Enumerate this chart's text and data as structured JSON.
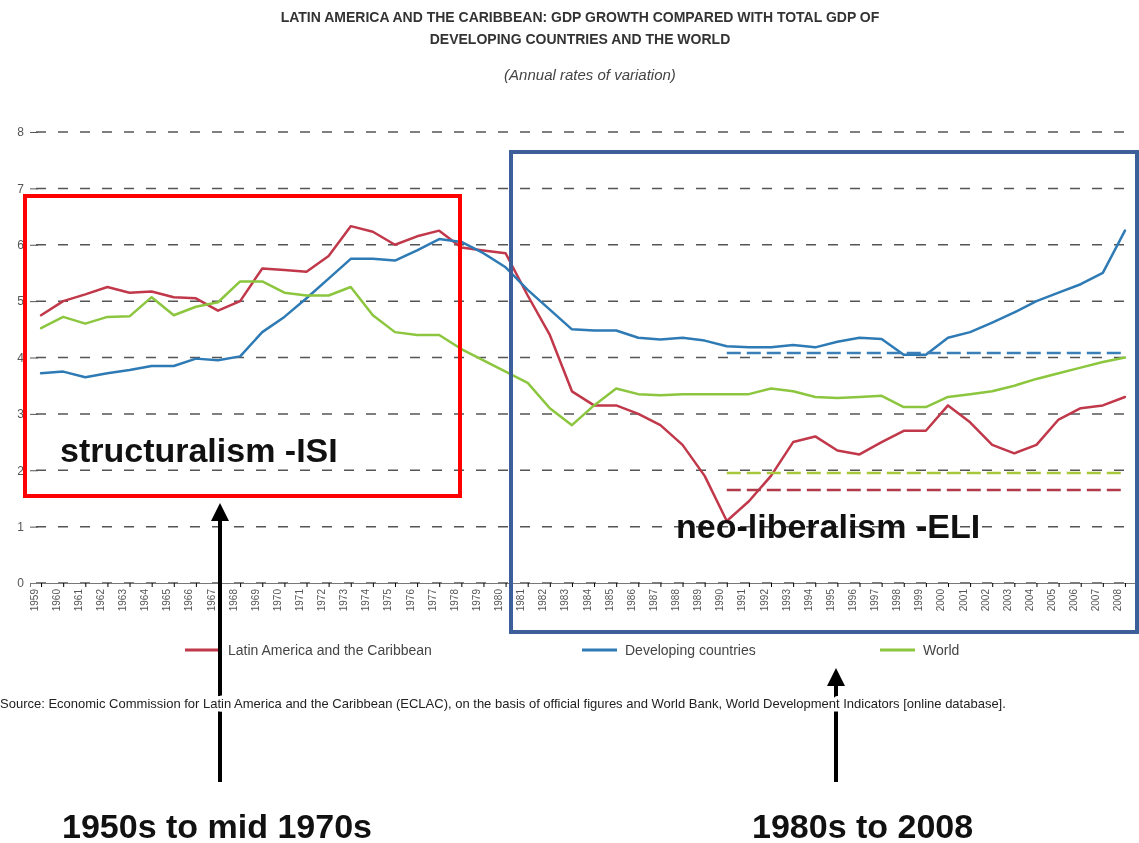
{
  "chart_data": {
    "type": "line",
    "title": "LATIN AMERICA AND THE CARIBBEAN: GDP GROWTH COMPARED WITH TOTAL GDP OF DEVELOPING COUNTRIES AND THE WORLD",
    "subtitle": "(Annual rates of variation)",
    "categories": [
      "1959",
      "1960",
      "1961",
      "1962",
      "1963",
      "1964",
      "1965",
      "1966",
      "1967",
      "1968",
      "1969",
      "1970",
      "1971",
      "1972",
      "1973",
      "1974",
      "1975",
      "1976",
      "1977",
      "1978",
      "1979",
      "1980",
      "1981",
      "1982",
      "1983",
      "1984",
      "1985",
      "1986",
      "1987",
      "1988",
      "1989",
      "1990",
      "1991",
      "1992",
      "1993",
      "1994",
      "1995",
      "1996",
      "1997",
      "1998",
      "1999",
      "2000",
      "2001",
      "2002",
      "2003",
      "2004",
      "2005",
      "2006",
      "2007",
      "2008"
    ],
    "series": [
      {
        "name": "Latin America and the Caribbean",
        "color": "#c0384a",
        "values": [
          4.75,
          5.0,
          5.12,
          5.25,
          5.15,
          5.17,
          5.07,
          5.05,
          4.83,
          5.0,
          5.58,
          5.55,
          5.52,
          5.8,
          6.33,
          6.23,
          6.0,
          6.15,
          6.25,
          5.95,
          5.9,
          5.85,
          5.1,
          4.4,
          3.4,
          3.15,
          3.15,
          3.0,
          2.8,
          2.45,
          1.9,
          1.1,
          1.45,
          1.9,
          2.5,
          2.6,
          2.35,
          2.28,
          2.5,
          2.7,
          2.7,
          3.15,
          2.85,
          2.45,
          2.3,
          2.45,
          2.9,
          3.1,
          3.15,
          3.3
        ]
      },
      {
        "name": "Developing countries",
        "color": "#2e7ab5",
        "values": [
          3.72,
          3.75,
          3.65,
          3.72,
          3.78,
          3.85,
          3.85,
          3.98,
          3.95,
          4.02,
          4.45,
          4.72,
          5.05,
          5.4,
          5.75,
          5.75,
          5.72,
          5.9,
          6.1,
          6.05,
          5.85,
          5.6,
          5.2,
          4.85,
          4.5,
          4.48,
          4.48,
          4.35,
          4.32,
          4.35,
          4.3,
          4.2,
          4.18,
          4.18,
          4.22,
          4.18,
          4.28,
          4.35,
          4.33,
          4.05,
          4.05,
          4.35,
          4.45,
          4.62,
          4.8,
          5.0,
          5.15,
          5.3,
          5.5,
          6.25
        ]
      },
      {
        "name": "World",
        "color": "#8cc63f",
        "values": [
          4.52,
          4.72,
          4.6,
          4.72,
          4.73,
          5.07,
          4.75,
          4.9,
          4.98,
          5.35,
          5.35,
          5.15,
          5.1,
          5.1,
          5.25,
          4.75,
          4.45,
          4.4,
          4.4,
          4.15,
          3.95,
          3.75,
          3.55,
          3.1,
          2.8,
          3.15,
          3.45,
          3.35,
          3.33,
          3.35,
          3.35,
          3.35,
          3.35,
          3.45,
          3.4,
          3.3,
          3.28,
          3.3,
          3.32,
          3.12,
          3.12,
          3.3,
          3.35,
          3.4,
          3.5,
          3.62,
          3.72,
          3.82,
          3.92,
          4.0
        ]
      },
      {
        "color": "#3a7fb8",
        "line_style": "dashed",
        "values": [
          null,
          null,
          null,
          null,
          null,
          null,
          null,
          null,
          null,
          null,
          null,
          null,
          null,
          null,
          null,
          null,
          null,
          null,
          null,
          null,
          null,
          null,
          null,
          null,
          null,
          null,
          null,
          null,
          null,
          null,
          null,
          4.08,
          4.08,
          4.08,
          4.08,
          4.08,
          4.08,
          4.08,
          4.08,
          4.08,
          4.08,
          4.08,
          4.08,
          4.08,
          4.08,
          4.08,
          4.08,
          4.08,
          4.08,
          4.08
        ]
      },
      {
        "color": "#a8c83a",
        "line_style": "dashed",
        "values": [
          null,
          null,
          null,
          null,
          null,
          null,
          null,
          null,
          null,
          null,
          null,
          null,
          null,
          null,
          null,
          null,
          null,
          null,
          null,
          null,
          null,
          null,
          null,
          null,
          null,
          null,
          null,
          null,
          null,
          null,
          null,
          1.95,
          1.95,
          1.95,
          1.95,
          1.95,
          1.95,
          1.95,
          1.95,
          1.95,
          1.95,
          1.95,
          1.95,
          1.95,
          1.95,
          1.95,
          1.95,
          1.95,
          1.95,
          1.95
        ]
      },
      {
        "color": "#b03a4a",
        "line_style": "dashed",
        "values": [
          null,
          null,
          null,
          null,
          null,
          null,
          null,
          null,
          null,
          null,
          null,
          null,
          null,
          null,
          null,
          null,
          null,
          null,
          null,
          null,
          null,
          null,
          null,
          null,
          null,
          null,
          null,
          null,
          null,
          null,
          null,
          1.65,
          1.65,
          1.65,
          1.65,
          1.65,
          1.65,
          1.65,
          1.65,
          1.65,
          1.65,
          1.65,
          1.65,
          1.65,
          1.65,
          1.65,
          1.65,
          1.65,
          1.65,
          1.65
        ]
      }
    ],
    "ylim": [
      0,
      8
    ],
    "yticks": [
      0,
      1,
      2,
      3,
      4,
      5,
      6,
      7,
      8
    ],
    "grid": "y",
    "legend": "bottom",
    "annotations": [
      "Source: Economic Commission for Latin America and the Caribbean (ECLAC), on the basis of official figures and World Bank,  World Development Indicators [online database].",
      "structuralism -ISI",
      "neo-liberalism -ELI",
      "1950s to mid 1970s",
      "1980s to 2008"
    ]
  }
}
